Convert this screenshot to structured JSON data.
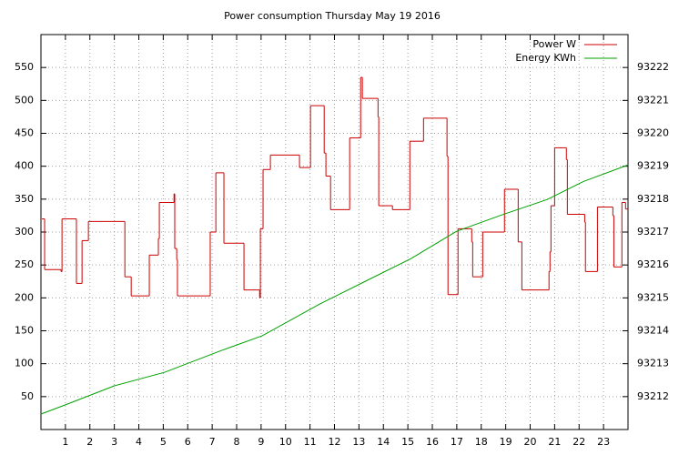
{
  "chart_data": {
    "type": "line",
    "title": "Power consumption Thursday May 19 2016",
    "xlim": [
      0,
      24
    ],
    "xticks": [
      1,
      2,
      3,
      4,
      5,
      6,
      7,
      8,
      9,
      10,
      11,
      12,
      13,
      14,
      15,
      16,
      17,
      18,
      19,
      20,
      21,
      22,
      23
    ],
    "ylim": [
      0,
      600
    ],
    "yticks": [
      50,
      100,
      150,
      200,
      250,
      300,
      350,
      400,
      450,
      500,
      550
    ],
    "y2lim": [
      93211,
      93223
    ],
    "y2ticks": [
      93212,
      93213,
      93214,
      93215,
      93216,
      93217,
      93218,
      93219,
      93220,
      93221,
      93222
    ],
    "grid": true,
    "legend": "top-right",
    "series": [
      {
        "name": "Power W",
        "color": "#cc0000",
        "step": "after",
        "x": [
          0.04,
          0.15,
          0.82,
          0.86,
          1.45,
          1.68,
          1.94,
          3.43,
          3.69,
          4.43,
          4.8,
          4.84,
          5.44,
          5.47,
          5.55,
          5.58,
          6.92,
          7.15,
          7.48,
          8.3,
          8.94,
          8.97,
          9.08,
          9.38,
          10.57,
          11.02,
          11.58,
          11.65,
          11.84,
          12.62,
          13.07,
          13.14,
          13.78,
          13.81,
          14.37,
          15.08,
          15.64,
          16.6,
          16.64,
          17.05,
          17.61,
          17.65,
          18.06,
          18.95,
          19.51,
          19.66,
          20.77,
          20.81,
          20.85,
          21.0,
          21.48,
          21.52,
          22.23,
          22.26,
          22.75,
          23.38,
          23.42,
          23.75,
          23.9
        ],
        "values": [
          320,
          243,
          240,
          320,
          222,
          287,
          316,
          232,
          203,
          265,
          290,
          345,
          358,
          275,
          258,
          203,
          300,
          390,
          283,
          212,
          200,
          305,
          395,
          417,
          398,
          492,
          420,
          385,
          334,
          443,
          535,
          503,
          475,
          340,
          334,
          438,
          473,
          415,
          205,
          305,
          285,
          232,
          300,
          365,
          285,
          212,
          240,
          270,
          340,
          428,
          410,
          327,
          315,
          240,
          338,
          325,
          247,
          345,
          335
        ]
      },
      {
        "name": "Energy KWh",
        "color": "#00a000",
        "axis": "y2",
        "x": [
          0,
          1,
          3.01,
          5.06,
          7.3,
          9.05,
          11.39,
          13.25,
          15.12,
          16.98,
          18.84,
          20.7,
          22.19,
          24
        ],
        "values": [
          93211.47,
          93211.75,
          93212.33,
          93212.74,
          93213.38,
          93213.85,
          93214.81,
          93215.5,
          93216.19,
          93217.02,
          93217.52,
          93217.99,
          93218.54,
          93219.04
        ]
      }
    ]
  }
}
